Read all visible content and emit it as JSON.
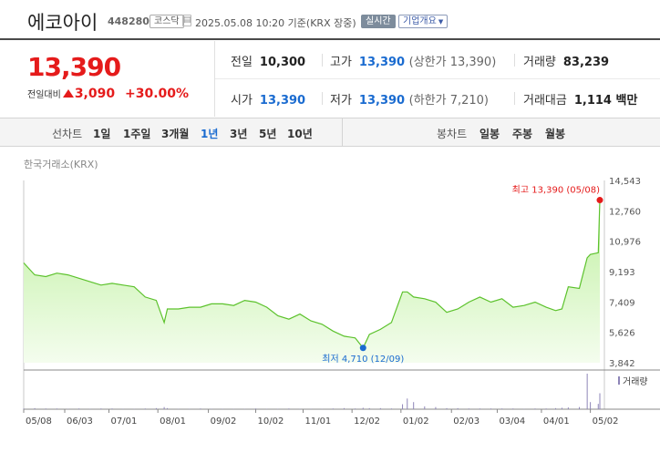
{
  "header": {
    "stock_name": "에코아이",
    "stock_code": "448280",
    "market": "코스닥",
    "datetime": "2025.05.08 10:20 기준(KRX 장중)",
    "live_label": "실시간",
    "company_overview_label": "기업개요"
  },
  "summary": {
    "price": "13,390",
    "change_label": "전일대비",
    "change": "3,090",
    "change_pct": "+30.00%",
    "prev_close_label": "전일",
    "prev_close": "10,300",
    "high_label": "고가",
    "high": "13,390",
    "upper_limit": "(상한가 13,390)",
    "volume_label": "거래량",
    "volume": "83,239",
    "open_label": "시가",
    "open": "13,390",
    "low_label": "저가",
    "low": "13,390",
    "lower_limit": "(하한가 7,210)",
    "trade_value_label": "거래대금",
    "trade_value": "1,114",
    "trade_value_unit": "백만"
  },
  "tabs": {
    "line_chart_label": "선차트",
    "periods": [
      "1일",
      "1주일",
      "3개월",
      "1년",
      "3년",
      "5년",
      "10년"
    ],
    "active_period": "1년",
    "candle_chart_label": "봉차트",
    "candle_periods": [
      "일봉",
      "주봉",
      "월봉"
    ]
  },
  "chart_source": "한국거래소(KRX)",
  "colors": {
    "up": "#e51b1b",
    "down": "#1a6bd0",
    "line": "#5cc22c",
    "fill": "#d8f6c7",
    "volume": "#8e85b8"
  },
  "chart_data": {
    "type": "area",
    "ylim": [
      3842,
      14543
    ],
    "yticks": [
      "14,543",
      "12,760",
      "10,976",
      "9,193",
      "7,409",
      "5,626",
      "3,842"
    ],
    "yticks_values": [
      14543,
      12760,
      10976,
      9193,
      7409,
      5626,
      3842
    ],
    "xticks": [
      "05/08",
      "06/03",
      "07/01",
      "08/01",
      "09/02",
      "10/02",
      "11/01",
      "12/02",
      "01/02",
      "02/03",
      "03/04",
      "04/01",
      "05/02"
    ],
    "x": [
      "2024-05-08",
      "2024-05-15",
      "2024-05-22",
      "2024-05-29",
      "2024-06-05",
      "2024-06-12",
      "2024-06-19",
      "2024-06-26",
      "2024-07-03",
      "2024-07-10",
      "2024-07-17",
      "2024-07-24",
      "2024-07-31",
      "2024-08-05",
      "2024-08-07",
      "2024-08-14",
      "2024-08-21",
      "2024-08-28",
      "2024-09-04",
      "2024-09-11",
      "2024-09-18",
      "2024-09-25",
      "2024-10-02",
      "2024-10-09",
      "2024-10-16",
      "2024-10-23",
      "2024-10-30",
      "2024-11-06",
      "2024-11-13",
      "2024-11-20",
      "2024-11-27",
      "2024-12-04",
      "2024-12-09",
      "2024-12-13",
      "2024-12-20",
      "2024-12-27",
      "2025-01-03",
      "2025-01-06",
      "2025-01-10",
      "2025-01-17",
      "2025-01-24",
      "2025-01-31",
      "2025-02-07",
      "2025-02-14",
      "2025-02-21",
      "2025-02-28",
      "2025-03-07",
      "2025-03-14",
      "2025-03-21",
      "2025-03-28",
      "2025-04-04",
      "2025-04-10",
      "2025-04-14",
      "2025-04-18",
      "2025-04-25",
      "2025-04-30",
      "2025-05-02",
      "2025-05-07",
      "2025-05-08"
    ],
    "values": [
      9700,
      9000,
      8900,
      9100,
      9000,
      8800,
      8600,
      8400,
      8500,
      8400,
      8300,
      7700,
      7500,
      6200,
      7000,
      7000,
      7100,
      7100,
      7300,
      7300,
      7200,
      7500,
      7400,
      7100,
      6600,
      6400,
      6700,
      6300,
      6100,
      5700,
      5400,
      5300,
      4710,
      5500,
      5800,
      6200,
      8000,
      8000,
      7700,
      7600,
      7400,
      6800,
      7000,
      7400,
      7700,
      7400,
      7600,
      7100,
      7200,
      7400,
      7100,
      6900,
      7000,
      8300,
      8200,
      10000,
      10200,
      10300,
      13390
    ],
    "max_label": "최고 13,390 (05/08)",
    "max_value": 13390,
    "max_date": "2025-05-08",
    "min_label": "최저 4,710 (12/09)",
    "min_value": 4710,
    "min_date": "2024-12-09",
    "volume_legend": "거래량",
    "volume": [
      2,
      3,
      2,
      2,
      1,
      2,
      1,
      2,
      2,
      1,
      1,
      2,
      3,
      6,
      3,
      1,
      1,
      2,
      1,
      1,
      1,
      1,
      2,
      1,
      1,
      2,
      1,
      1,
      1,
      2,
      3,
      2,
      4,
      3,
      3,
      2,
      14,
      30,
      20,
      8,
      6,
      3,
      3,
      2,
      2,
      2,
      2,
      2,
      1,
      2,
      2,
      3,
      4,
      5,
      6,
      100,
      20,
      15,
      45
    ]
  }
}
